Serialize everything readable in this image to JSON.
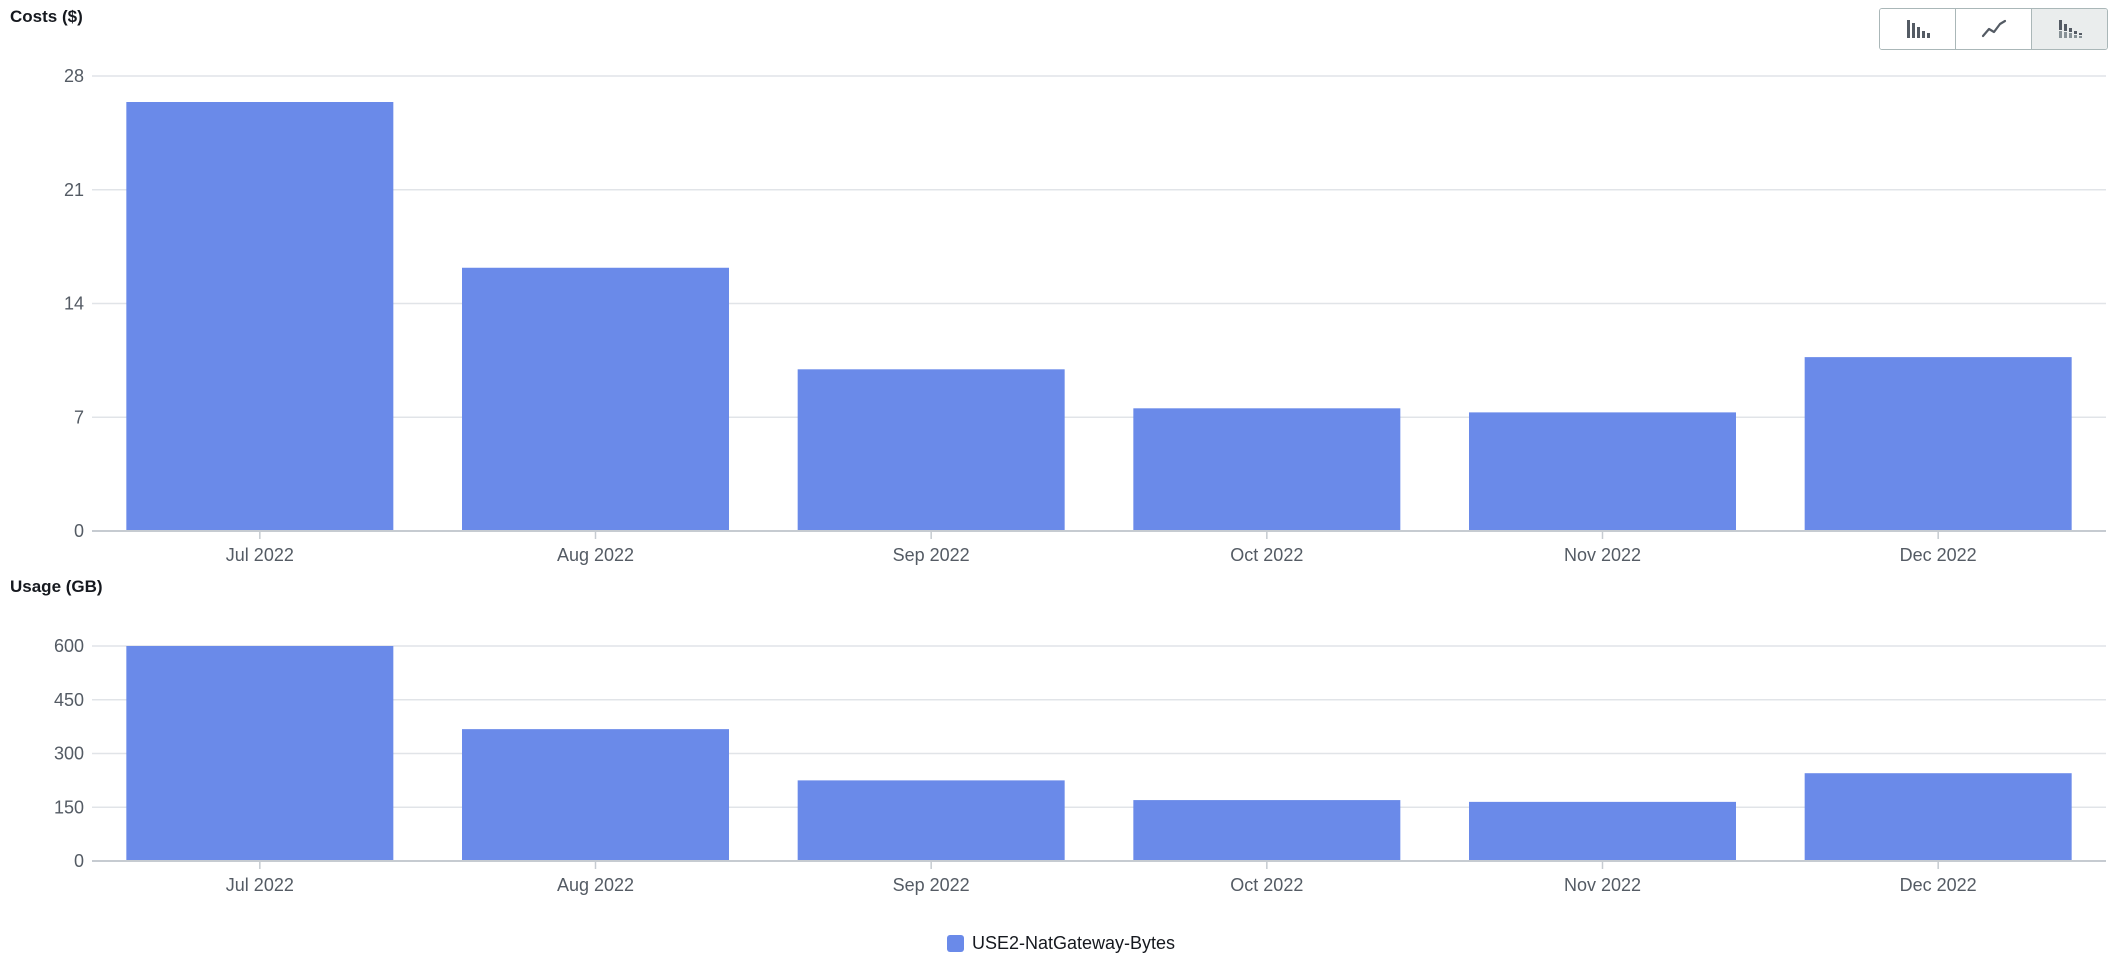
{
  "view_toggle": {
    "buttons": [
      {
        "name": "bar-chart-icon",
        "active": false
      },
      {
        "name": "line-chart-icon",
        "active": false
      },
      {
        "name": "stacked-bar-chart-icon",
        "active": true
      }
    ]
  },
  "colors": {
    "bar": "#6a8ae9",
    "grid": "#e1e4e8",
    "axis": "#c6cbd1",
    "text": "#16191f",
    "tick_text": "#545b64"
  },
  "legend": {
    "label": "USE2-NatGateway-Bytes",
    "color": "#6a8ae9"
  },
  "chart_data": [
    {
      "type": "bar",
      "title": "Costs ($)",
      "categories": [
        "Jul 2022",
        "Aug 2022",
        "Sep 2022",
        "Oct 2022",
        "Nov 2022",
        "Dec 2022"
      ],
      "series": [
        {
          "name": "USE2-NatGateway-Bytes",
          "values": [
            26.4,
            16.2,
            9.95,
            7.55,
            7.3,
            10.7
          ]
        }
      ],
      "yticks": [
        0,
        7,
        14,
        21,
        28
      ],
      "ylim": [
        0,
        28
      ],
      "grid": true
    },
    {
      "type": "bar",
      "title": "Usage (GB)",
      "categories": [
        "Jul 2022",
        "Aug 2022",
        "Sep 2022",
        "Oct 2022",
        "Nov 2022",
        "Dec 2022"
      ],
      "series": [
        {
          "name": "USE2-NatGateway-Bytes",
          "values": [
            600,
            368,
            225,
            170,
            165,
            245
          ]
        }
      ],
      "yticks": [
        0,
        150,
        300,
        450,
        600
      ],
      "ylim": [
        0,
        600
      ],
      "grid": true
    }
  ]
}
